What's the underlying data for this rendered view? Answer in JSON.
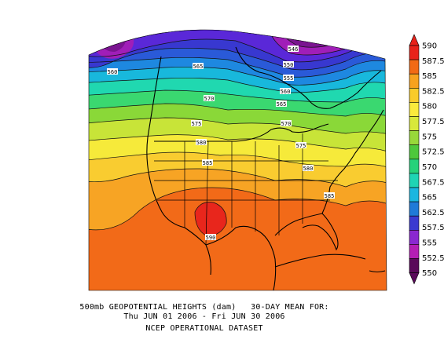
{
  "caption": {
    "line1": "500mb GEOPOTENTIAL HEIGHTS (dam)   30-DAY MEAN FOR:",
    "line2": "Thu JUN 01 2006 - Fri JUN 30 2006",
    "line3": "NCEP OPERATIONAL DATASET"
  },
  "legend": {
    "levels": [
      "590",
      "587.5",
      "585",
      "582.5",
      "580",
      "577.5",
      "575",
      "572.5",
      "570",
      "567.5",
      "565",
      "562.5",
      "557.5",
      "555",
      "552.5",
      "550"
    ],
    "colors": [
      "#e8221a",
      "#f26a14",
      "#f7a21e",
      "#f9cb2a",
      "#fbea3c",
      "#d8e83a",
      "#98d83a",
      "#4ec83c",
      "#26d27a",
      "#1fd4b4",
      "#1ab6e0",
      "#1f7ad8",
      "#3a3ad0",
      "#8a28d0",
      "#b41eb4",
      "#5a0a5a"
    ]
  },
  "contour_labels": [
    {
      "text": "546"
    },
    {
      "text": "560"
    },
    {
      "text": "565"
    },
    {
      "text": "550"
    },
    {
      "text": "555"
    },
    {
      "text": "560"
    },
    {
      "text": "565"
    },
    {
      "text": "570"
    },
    {
      "text": "575"
    },
    {
      "text": "570"
    },
    {
      "text": "575"
    },
    {
      "text": "580"
    },
    {
      "text": "585"
    },
    {
      "text": "580"
    },
    {
      "text": "585"
    },
    {
      "text": "590"
    }
  ],
  "bands": {
    "c550": "#4a0a5a",
    "c552": "#7a1490",
    "c555": "#a01eb8",
    "c557": "#5a28d8",
    "c560": "#3838d0",
    "c562": "#2a5ad8",
    "c565": "#1e88e0",
    "c567": "#18b8dc",
    "c570": "#20d8b0",
    "c572": "#3ad870",
    "c575": "#8ad838",
    "c577": "#c8e438",
    "c580": "#f6ea3a",
    "c582": "#f9cc30",
    "c585": "#f7a424",
    "c587": "#f26a18",
    "c590": "#e8261c"
  }
}
